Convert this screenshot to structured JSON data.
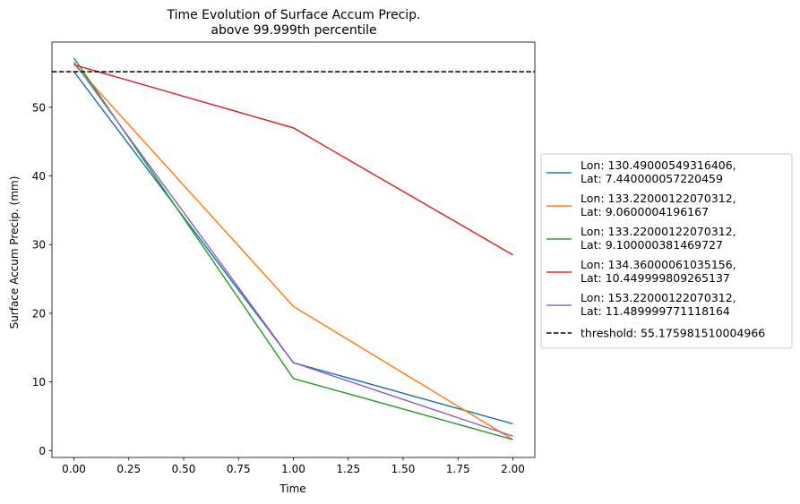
{
  "chart_data": {
    "type": "line",
    "title": "Time Evolution of Surface Accum Precip.",
    "subtitle": "above 99.999th percentile",
    "xlabel": "Time",
    "ylabel": "Surface Accum Precip. (mm)",
    "xlim": [
      -0.1,
      2.1
    ],
    "ylim": [
      -1.0,
      59.5
    ],
    "xticks": [
      0.0,
      0.25,
      0.5,
      0.75,
      1.0,
      1.25,
      1.5,
      1.75,
      2.0
    ],
    "xtick_labels": [
      "0.00",
      "0.25",
      "0.50",
      "0.75",
      "1.00",
      "1.25",
      "1.50",
      "1.75",
      "2.00"
    ],
    "yticks": [
      0,
      10,
      20,
      30,
      40,
      50
    ],
    "ytick_labels": [
      "0",
      "10",
      "20",
      "30",
      "40",
      "50"
    ],
    "grid": false,
    "legend_position": "outside-right",
    "x": [
      0,
      1,
      2
    ],
    "series": [
      {
        "name": [
          "Lon: 130.49000549316406,",
          "Lat: 7.440000057220459"
        ],
        "color": "#1f77b4",
        "values": [
          55.2,
          12.8,
          3.9
        ]
      },
      {
        "name": [
          "Lon: 133.22000122070312,",
          "Lat: 9.0600004196167"
        ],
        "color": "#ff7f0e",
        "values": [
          56.3,
          21.0,
          1.6
        ]
      },
      {
        "name": [
          "Lon: 133.22000122070312,",
          "Lat: 9.100000381469727"
        ],
        "color": "#2ca02c",
        "values": [
          57.2,
          10.5,
          1.6
        ]
      },
      {
        "name": [
          "Lon: 134.36000061035156,",
          "Lat: 10.449999809265137"
        ],
        "color": "#d62728",
        "values": [
          56.2,
          47.0,
          28.5
        ]
      },
      {
        "name": [
          "Lon: 153.22000122070312,",
          "Lat: 11.489999771118164"
        ],
        "color": "#9467bd",
        "values": [
          56.6,
          12.8,
          2.1
        ]
      }
    ],
    "threshold": {
      "label": "threshold: 55.175981510004966",
      "value": 55.175981510004966,
      "color": "#000000"
    }
  }
}
